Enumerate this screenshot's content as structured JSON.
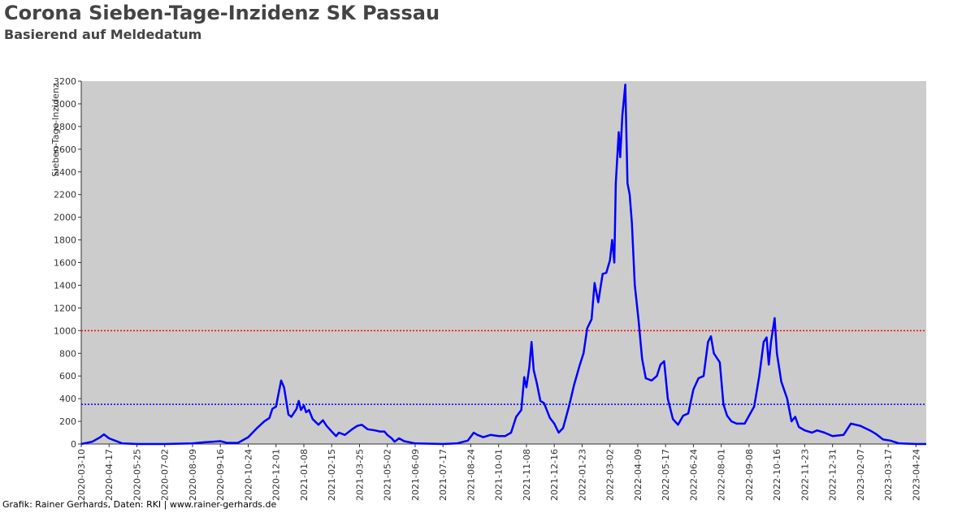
{
  "chart_data": {
    "type": "line",
    "title": "Corona Sieben-Tage-Inzidenz SK Passau",
    "subtitle": "Basierend auf Meldedatum",
    "y_label": "Sieben-Tage-Inzidenz",
    "footer": "Grafik: Rainer Gerhards, Daten: RKI | www.rainer-gerhards.de",
    "color": "#0000ff",
    "background": "#cccccc",
    "grid": false,
    "xlim": [
      "2020-03-10",
      "2023-05-08"
    ],
    "ylim": [
      0,
      3200
    ],
    "yticks": [
      0,
      200,
      400,
      600,
      800,
      1000,
      1200,
      1400,
      1600,
      1800,
      2000,
      2200,
      2400,
      2600,
      2800,
      3000,
      3200
    ],
    "xticks": [
      "2020-03-10",
      "2020-04-17",
      "2020-05-25",
      "2020-07-02",
      "2020-08-09",
      "2020-09-16",
      "2020-10-24",
      "2020-12-01",
      "2021-01-08",
      "2021-02-15",
      "2021-03-25",
      "2021-05-02",
      "2021-06-09",
      "2021-07-17",
      "2021-08-24",
      "2021-10-01",
      "2021-11-08",
      "2021-12-16",
      "2022-01-23",
      "2022-03-02",
      "2022-04-09",
      "2022-05-17",
      "2022-06-24",
      "2022-08-01",
      "2022-09-08",
      "2022-10-16",
      "2022-11-23",
      "2022-12-31",
      "2023-02-07",
      "2023-03-17",
      "2023-04-24"
    ],
    "reference_lines": [
      {
        "value": 1000,
        "color": "#ff0000"
      },
      {
        "value": 350,
        "color": "#0000ff"
      }
    ],
    "x": [
      "2020-03-10",
      "2020-03-25",
      "2020-04-05",
      "2020-04-10",
      "2020-04-17",
      "2020-04-25",
      "2020-05-05",
      "2020-05-25",
      "2020-07-02",
      "2020-08-09",
      "2020-08-25",
      "2020-09-05",
      "2020-09-16",
      "2020-09-25",
      "2020-10-10",
      "2020-10-24",
      "2020-11-05",
      "2020-11-15",
      "2020-11-22",
      "2020-11-26",
      "2020-12-01",
      "2020-12-08",
      "2020-12-12",
      "2020-12-18",
      "2020-12-22",
      "2020-12-29",
      "2021-01-01",
      "2021-01-04",
      "2021-01-08",
      "2021-01-11",
      "2021-01-15",
      "2021-01-20",
      "2021-01-28",
      "2021-02-03",
      "2021-02-08",
      "2021-02-15",
      "2021-02-21",
      "2021-02-25",
      "2021-03-05",
      "2021-03-15",
      "2021-03-22",
      "2021-03-28",
      "2021-04-05",
      "2021-04-15",
      "2021-04-22",
      "2021-04-28",
      "2021-05-02",
      "2021-05-08",
      "2021-05-12",
      "2021-05-18",
      "2021-05-25",
      "2021-06-09",
      "2021-07-17",
      "2021-08-05",
      "2021-08-20",
      "2021-08-28",
      "2021-09-02",
      "2021-09-10",
      "2021-09-20",
      "2021-10-01",
      "2021-10-10",
      "2021-10-18",
      "2021-10-25",
      "2021-11-01",
      "2021-11-05",
      "2021-11-08",
      "2021-11-12",
      "2021-11-15",
      "2021-11-18",
      "2021-11-22",
      "2021-11-27",
      "2021-12-02",
      "2021-12-10",
      "2021-12-16",
      "2021-12-22",
      "2021-12-28",
      "2022-01-05",
      "2022-01-12",
      "2022-01-20",
      "2022-01-25",
      "2022-01-30",
      "2022-02-05",
      "2022-02-09",
      "2022-02-14",
      "2022-02-20",
      "2022-02-25",
      "2022-03-02",
      "2022-03-05",
      "2022-03-08",
      "2022-03-10",
      "2022-03-14",
      "2022-03-16",
      "2022-03-19",
      "2022-03-23",
      "2022-03-26",
      "2022-03-29",
      "2022-04-01",
      "2022-04-05",
      "2022-04-10",
      "2022-04-15",
      "2022-04-20",
      "2022-04-28",
      "2022-05-05",
      "2022-05-10",
      "2022-05-15",
      "2022-05-20",
      "2022-05-27",
      "2022-06-03",
      "2022-06-10",
      "2022-06-17",
      "2022-06-24",
      "2022-07-01",
      "2022-07-08",
      "2022-07-14",
      "2022-07-18",
      "2022-07-22",
      "2022-07-30",
      "2022-08-04",
      "2022-08-09",
      "2022-08-15",
      "2022-08-22",
      "2022-09-02",
      "2022-09-08",
      "2022-09-15",
      "2022-09-22",
      "2022-09-28",
      "2022-10-02",
      "2022-10-05",
      "2022-10-08",
      "2022-10-13",
      "2022-10-16",
      "2022-10-22",
      "2022-10-30",
      "2022-11-05",
      "2022-11-10",
      "2022-11-15",
      "2022-11-23",
      "2022-12-03",
      "2022-12-10",
      "2022-12-20",
      "2022-12-31",
      "2023-01-15",
      "2023-01-25",
      "2023-02-07",
      "2023-02-20",
      "2023-02-28",
      "2023-03-10",
      "2023-03-20",
      "2023-04-01",
      "2023-04-24",
      "2023-05-08"
    ],
    "values": [
      0,
      20,
      60,
      85,
      50,
      30,
      5,
      0,
      0,
      5,
      15,
      20,
      25,
      10,
      10,
      60,
      140,
      200,
      230,
      310,
      330,
      560,
      500,
      260,
      240,
      310,
      380,
      300,
      340,
      280,
      300,
      220,
      170,
      210,
      160,
      110,
      70,
      100,
      80,
      130,
      160,
      170,
      130,
      120,
      110,
      110,
      80,
      50,
      20,
      50,
      25,
      5,
      0,
      5,
      30,
      100,
      80,
      60,
      80,
      70,
      70,
      100,
      240,
      300,
      590,
      500,
      680,
      900,
      650,
      540,
      380,
      360,
      230,
      180,
      100,
      140,
      330,
      520,
      700,
      800,
      1020,
      1100,
      1420,
      1250,
      1500,
      1510,
      1620,
      1800,
      1600,
      2300,
      2750,
      2530,
      2900,
      3170,
      2300,
      2200,
      1950,
      1400,
      1100,
      750,
      580,
      560,
      600,
      700,
      730,
      400,
      220,
      170,
      250,
      270,
      480,
      580,
      600,
      900,
      950,
      800,
      720,
      350,
      250,
      200,
      180,
      180,
      250,
      330,
      600,
      900,
      940,
      700,
      900,
      1110,
      800,
      550,
      400,
      200,
      240,
      150,
      120,
      100,
      120,
      100,
      70,
      80,
      180,
      160,
      120,
      90,
      40,
      30,
      5,
      0,
      0
    ]
  }
}
